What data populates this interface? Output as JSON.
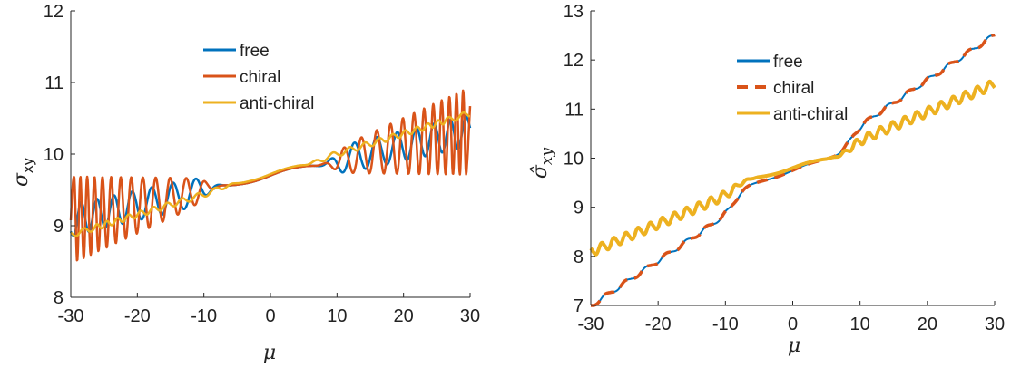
{
  "colors": {
    "free": "#0072BD",
    "chiral": "#D95319",
    "anti_chiral": "#EDB120",
    "axis": "#262626"
  },
  "chart_data": [
    {
      "type": "line",
      "xlabel": "μ",
      "ylabel_main": "σ",
      "ylabel_sub": "xy",
      "xlim": [
        -30,
        30
      ],
      "ylim": [
        8,
        12
      ],
      "xticks": [
        -30,
        -20,
        -10,
        0,
        10,
        20,
        30
      ],
      "yticks": [
        8,
        9,
        10,
        11,
        12
      ],
      "grid": false,
      "legend_position": "top-center",
      "series": [
        {
          "name": "free",
          "color_key": "free",
          "dash": false,
          "width": 2.5,
          "model": {
            "kind": "osc",
            "slope": 0.0208,
            "offset": 9.7,
            "plateau_half": 9.5,
            "amp_edge": 0.2,
            "amp_grow": 0.001,
            "period_edge": 3.2,
            "period_center": 4.6
          }
        },
        {
          "name": "chiral",
          "color_key": "chiral",
          "dash": false,
          "width": 2.5,
          "model": {
            "kind": "osc",
            "slope": 0.0208,
            "offset": 9.7,
            "plateau_half": 9.5,
            "amp_edge": 0.16,
            "amp_grow": 0.022,
            "period_edge": 2.0,
            "period_center": 4.4
          }
        },
        {
          "name": "anti-chiral",
          "color_key": "anti_chiral",
          "dash": false,
          "width": 2.5,
          "model": {
            "kind": "osc",
            "slope": 0.0283,
            "offset": 9.72,
            "plateau_half": 6.5,
            "amp_edge": 0.04,
            "amp_grow": 0.0,
            "period_edge": 2.2,
            "period_center": 3.4
          }
        }
      ]
    },
    {
      "type": "line",
      "xlabel": "μ",
      "ylabel_main": "σ̂",
      "ylabel_sub": "xy",
      "xlim": [
        -30,
        30
      ],
      "ylim": [
        7,
        13
      ],
      "xticks": [
        -30,
        -20,
        -10,
        0,
        10,
        20,
        30
      ],
      "yticks": [
        7,
        8,
        9,
        10,
        11,
        12,
        13
      ],
      "grid": false,
      "legend_position": "top-center",
      "series": [
        {
          "name": "free",
          "color_key": "free",
          "dash": false,
          "width": 2,
          "model": {
            "kind": "stairs",
            "slope": 0.092,
            "offset": 9.75,
            "plateau_half": 8.0,
            "step_period": 3.0,
            "sharp": 0.55,
            "wiggle": 0.0
          }
        },
        {
          "name": "chiral",
          "color_key": "chiral",
          "dash": true,
          "width": 3.5,
          "model": {
            "kind": "stairs",
            "slope": 0.092,
            "offset": 9.75,
            "plateau_half": 8.0,
            "step_period": 3.0,
            "sharp": 0.55,
            "wiggle": 0.0
          }
        },
        {
          "name": "anti-chiral",
          "color_key": "anti_chiral",
          "dash": false,
          "width": 4,
          "model": {
            "kind": "stairs",
            "slope": 0.057,
            "offset": 9.8,
            "plateau_half": 8.0,
            "step_period": 1.8,
            "sharp": 0.3,
            "wiggle": 0.12
          }
        }
      ]
    }
  ]
}
